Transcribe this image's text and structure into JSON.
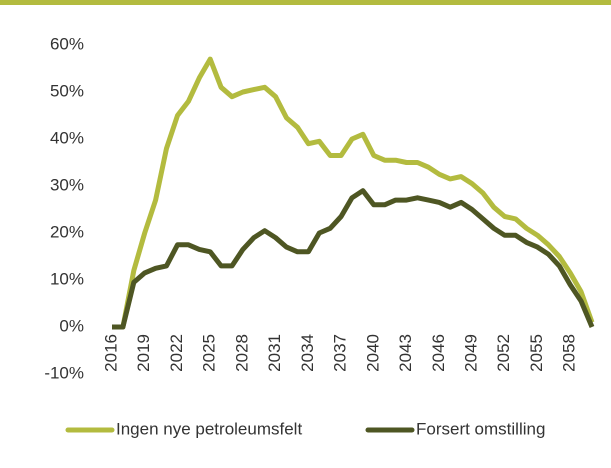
{
  "chart_data": {
    "type": "line",
    "categories": [
      "2016",
      null,
      null,
      "2019",
      null,
      null,
      "2022",
      null,
      null,
      "2025",
      null,
      null,
      "2028",
      null,
      null,
      "2031",
      null,
      null,
      "2034",
      null,
      null,
      "2037",
      null,
      null,
      "2040",
      null,
      null,
      "2043",
      null,
      null,
      "2046",
      null,
      null,
      "2049",
      null,
      null,
      "2052",
      null,
      null,
      "2055",
      null,
      null,
      "2058",
      null,
      null
    ],
    "series": [
      {
        "name": "Ingen nye petroleumsfelt",
        "color": "#b3bb3f",
        "values": [
          0,
          0,
          12,
          20,
          27,
          38,
          45,
          48,
          53,
          57,
          51,
          49,
          50,
          50.5,
          51,
          49,
          44.5,
          42.5,
          39,
          39.5,
          36.5,
          36.5,
          40,
          41,
          36.5,
          35.5,
          35.5,
          35,
          35,
          34,
          32.5,
          31.5,
          32,
          30.5,
          28.5,
          25.5,
          23.5,
          23,
          21,
          19.5,
          17.5,
          15,
          11.5,
          7.5,
          1
        ]
      },
      {
        "name": "Forsert omstilling",
        "color": "#4e5623",
        "values": [
          0,
          0,
          9.5,
          11.5,
          12.5,
          13,
          17.5,
          17.5,
          16.5,
          16,
          13,
          13,
          16.5,
          19,
          20.5,
          19,
          17,
          16,
          16,
          20,
          21,
          23.5,
          27.5,
          29,
          26,
          26,
          27,
          27,
          27.5,
          27,
          26.5,
          25.5,
          26.5,
          25,
          23,
          21,
          19.5,
          19.5,
          18,
          17,
          15.5,
          13,
          9,
          5.5,
          0
        ]
      }
    ],
    "ylim": [
      -10,
      60
    ],
    "yticks": [
      {
        "value": -10,
        "label": "-10%"
      },
      {
        "value": 0,
        "label": "0%"
      },
      {
        "value": 10,
        "label": "10%"
      },
      {
        "value": 20,
        "label": "20%"
      },
      {
        "value": 30,
        "label": "30%"
      },
      {
        "value": 40,
        "label": "40%"
      },
      {
        "value": 50,
        "label": "50%"
      },
      {
        "value": 60,
        "label": "60%"
      }
    ],
    "grid": false,
    "legend": "bottom"
  }
}
